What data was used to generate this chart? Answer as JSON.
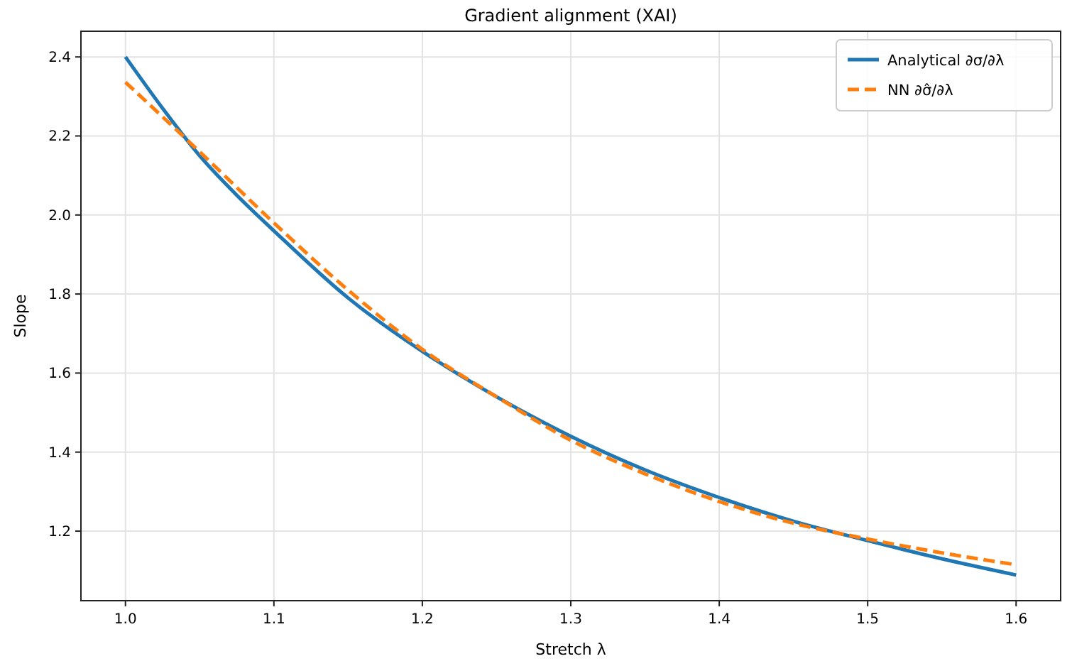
{
  "chart_data": {
    "type": "line",
    "title": "Gradient alignment (XAI)",
    "xlabel": "Stretch λ",
    "ylabel": "Slope",
    "xlim": [
      0.97,
      1.63
    ],
    "ylim": [
      1.024,
      2.465
    ],
    "xticks": [
      {
        "value": 1,
        "label": "1.0"
      },
      1.1,
      1.2,
      1.3,
      1.4,
      1.5,
      1.6
    ],
    "yticks": [
      1.2,
      1.4,
      1.6,
      1.8,
      {
        "value": 2,
        "label": "2.0"
      },
      2.2,
      2.4
    ],
    "grid": true,
    "legend": "top right",
    "series": [
      {
        "name": "Analytical ∂σ/∂λ",
        "color": "#1f77b4",
        "line_style": "solid",
        "x": [
          1.0,
          1.025,
          1.05,
          1.075,
          1.1,
          1.15,
          1.2,
          1.25,
          1.3,
          1.35,
          1.4,
          1.45,
          1.5,
          1.55,
          1.6
        ],
        "values": [
          2.4,
          2.27,
          2.15,
          2.05,
          1.96,
          1.79,
          1.655,
          1.54,
          1.44,
          1.355,
          1.285,
          1.225,
          1.176,
          1.13,
          1.089
        ]
      },
      {
        "name": "NN ∂σ̂/∂λ",
        "color": "#ff7f0e",
        "line_style": "dashed",
        "x": [
          1.0,
          1.05,
          1.1,
          1.15,
          1.2,
          1.25,
          1.3,
          1.35,
          1.4,
          1.45,
          1.5,
          1.55,
          1.6
        ],
        "values": [
          2.336,
          2.16,
          1.98,
          1.81,
          1.66,
          1.54,
          1.43,
          1.345,
          1.275,
          1.22,
          1.18,
          1.145,
          1.115
        ]
      }
    ]
  }
}
